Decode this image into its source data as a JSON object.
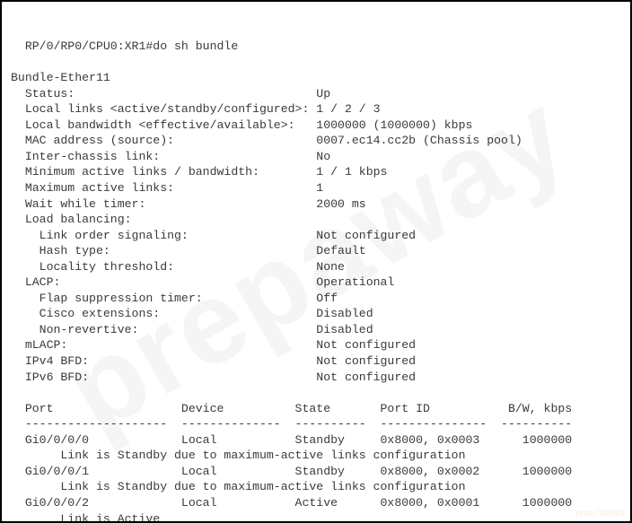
{
  "prompt": "RP/0/RP0/CPU0:XR1#do sh bundle",
  "bundle_name": "Bundle-Ether11",
  "fields": {
    "status": {
      "label": "Status:",
      "value": "Up",
      "indent": 1
    },
    "local_links": {
      "label": "Local links <active/standby/configured>:",
      "value": "1 / 2 / 3",
      "indent": 1
    },
    "local_bw": {
      "label": "Local bandwidth <effective/available>:",
      "value": "1000000 (1000000) kbps",
      "indent": 1
    },
    "mac": {
      "label": "MAC address (source):",
      "value": "0007.ec14.cc2b (Chassis pool)",
      "indent": 1
    },
    "inter_chassis": {
      "label": "Inter-chassis link:",
      "value": "No",
      "indent": 1
    },
    "min_active": {
      "label": "Minimum active links / bandwidth:",
      "value": "1 / 1 kbps",
      "indent": 1
    },
    "max_active": {
      "label": "Maximum active links:",
      "value": "1",
      "indent": 1
    },
    "wait_timer": {
      "label": "Wait while timer:",
      "value": "2000 ms",
      "indent": 1
    },
    "load_bal": {
      "label": "Load balancing:",
      "value": "",
      "indent": 1
    },
    "link_order": {
      "label": "Link order signaling:",
      "value": "Not configured",
      "indent": 2
    },
    "hash_type": {
      "label": "Hash type:",
      "value": "Default",
      "indent": 2
    },
    "locality": {
      "label": "Locality threshold:",
      "value": "None",
      "indent": 2
    },
    "lacp": {
      "label": "LACP:",
      "value": "Operational",
      "indent": 1
    },
    "flap": {
      "label": "Flap suppression timer:",
      "value": "Off",
      "indent": 2
    },
    "cisco_ext": {
      "label": "Cisco extensions:",
      "value": "Disabled",
      "indent": 2
    },
    "non_rev": {
      "label": "Non-revertive:",
      "value": "Disabled",
      "indent": 2
    },
    "mlacp": {
      "label": "mLACP:",
      "value": "Not configured",
      "indent": 1
    },
    "ipv4bfd": {
      "label": "IPv4 BFD:",
      "value": "Not configured",
      "indent": 1
    },
    "ipv6bfd": {
      "label": "IPv6 BFD:",
      "value": "Not configured",
      "indent": 1
    }
  },
  "field_order": [
    "status",
    "local_links",
    "local_bw",
    "mac",
    "inter_chassis",
    "min_active",
    "max_active",
    "wait_timer",
    "load_bal",
    "link_order",
    "hash_type",
    "locality",
    "lacp",
    "flap",
    "cisco_ext",
    "non_rev",
    "mlacp",
    "ipv4bfd",
    "ipv6bfd"
  ],
  "value_column": 43,
  "table": {
    "columns": [
      {
        "header": "Port",
        "width": 22
      },
      {
        "header": "Device",
        "width": 16
      },
      {
        "header": "State",
        "width": 12
      },
      {
        "header": "Port ID",
        "width": 17
      },
      {
        "header": "B/W, kbps",
        "width": 10,
        "align": "right"
      }
    ],
    "leading_indent": 2,
    "reason_indent": 7,
    "rows": [
      {
        "port": "Gi0/0/0/0",
        "device": "Local",
        "state": "Standby",
        "port_id": "0x8000, 0x0003",
        "bw": "1000000",
        "reason": "Link is Standby due to maximum-active links configuration"
      },
      {
        "port": "Gi0/0/0/1",
        "device": "Local",
        "state": "Standby",
        "port_id": "0x8000, 0x0002",
        "bw": "1000000",
        "reason": "Link is Standby due to maximum-active links configuration"
      },
      {
        "port": "Gi0/0/0/2",
        "device": "Local",
        "state": "Active",
        "port_id": "0x8000, 0x0001",
        "bw": "1000000",
        "reason": "Link is Active"
      }
    ]
  },
  "watermark_text": "prepaway",
  "footer_id": "praw709529"
}
